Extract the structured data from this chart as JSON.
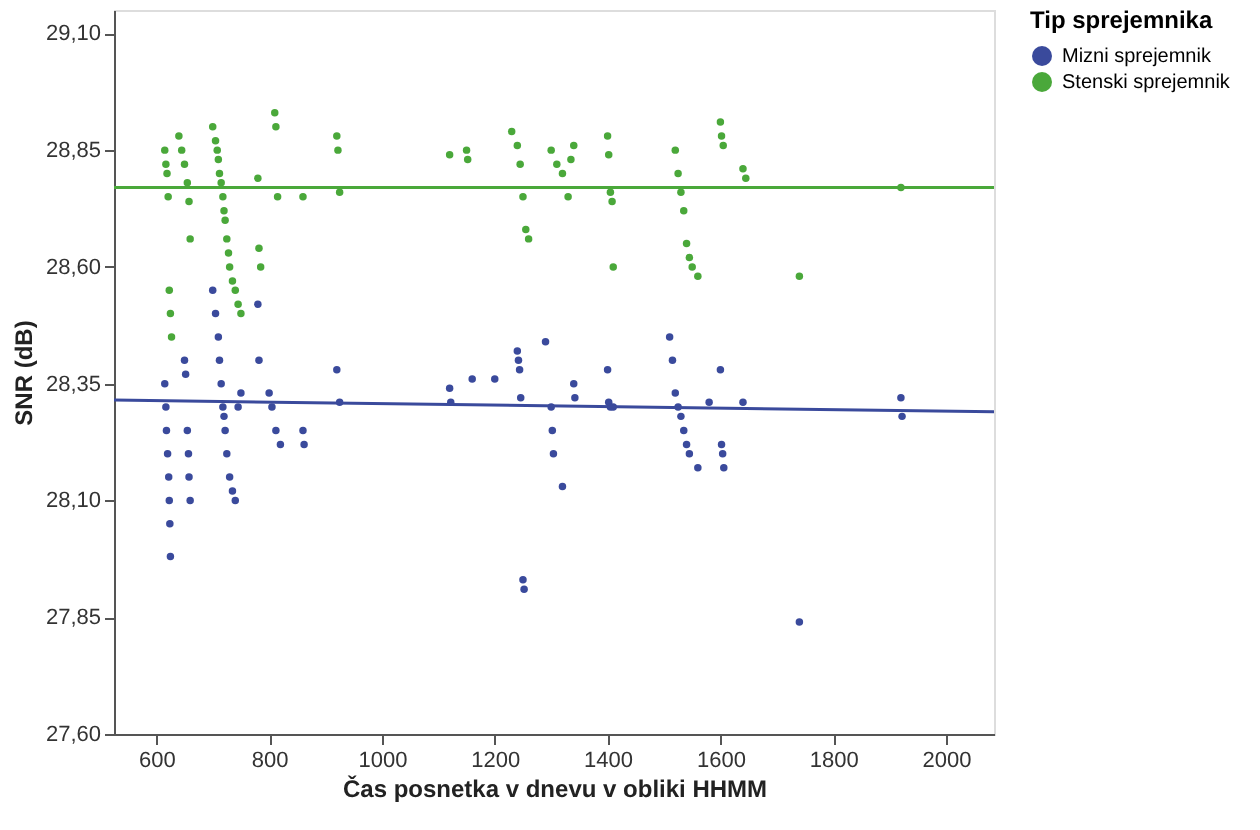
{
  "chart_data": {
    "type": "scatter",
    "xlabel": "Čas posnetka v dnevu v obliki HHMM",
    "ylabel": "SNR (dB)",
    "legend_title": "Tip sprejemnika",
    "legend": "right",
    "marker": "circle",
    "grid": false,
    "xlim": [
      525,
      2085
    ],
    "xticks": [
      600,
      800,
      1000,
      1200,
      1400,
      1600,
      1800,
      2000
    ],
    "ylim": [
      27.6,
      29.15
    ],
    "yticks": [
      {
        "value": 27.6,
        "label": "27,60"
      },
      {
        "value": 27.85,
        "label": "27,85"
      },
      {
        "value": 28.1,
        "label": "28,10"
      },
      {
        "value": 28.35,
        "label": "28,35"
      },
      {
        "value": 28.6,
        "label": "28,60"
      },
      {
        "value": 28.85,
        "label": "28,85"
      },
      {
        "value": 29.1,
        "label": "29,10"
      }
    ],
    "series": [
      {
        "name": "Mizni sprejemnik",
        "color": "#3a4a9c",
        "x": [
          615,
          617,
          618,
          620,
          622,
          623,
          624,
          625,
          650,
          652,
          655,
          657,
          658,
          660,
          700,
          705,
          710,
          712,
          715,
          718,
          720,
          722,
          725,
          730,
          735,
          740,
          745,
          750,
          780,
          782,
          800,
          805,
          812,
          820,
          860,
          862,
          920,
          925,
          1120,
          1122,
          1160,
          1200,
          1240,
          1242,
          1244,
          1246,
          1250,
          1252,
          1290,
          1300,
          1302,
          1304,
          1320,
          1340,
          1342,
          1400,
          1402,
          1405,
          1410,
          1510,
          1515,
          1520,
          1525,
          1530,
          1535,
          1540,
          1545,
          1560,
          1580,
          1600,
          1602,
          1604,
          1606,
          1640,
          1740,
          1920,
          1922
        ],
        "values": [
          28.35,
          28.3,
          28.25,
          28.2,
          28.15,
          28.1,
          28.05,
          27.98,
          28.4,
          28.37,
          28.25,
          28.2,
          28.15,
          28.1,
          28.55,
          28.5,
          28.45,
          28.4,
          28.35,
          28.3,
          28.28,
          28.25,
          28.2,
          28.15,
          28.12,
          28.1,
          28.3,
          28.33,
          28.52,
          28.4,
          28.33,
          28.3,
          28.25,
          28.22,
          28.25,
          28.22,
          28.38,
          28.31,
          28.34,
          28.31,
          28.36,
          28.36,
          28.42,
          28.4,
          28.38,
          28.32,
          27.93,
          27.91,
          28.44,
          28.3,
          28.25,
          28.2,
          28.13,
          28.35,
          28.32,
          28.38,
          28.31,
          28.3,
          28.3,
          28.45,
          28.4,
          28.33,
          28.3,
          28.28,
          28.25,
          28.22,
          28.2,
          28.17,
          28.31,
          28.38,
          28.22,
          28.2,
          28.17,
          28.31,
          27.84,
          28.32,
          28.28
        ]
      },
      {
        "name": "Stenski sprejemnik",
        "color": "#4aa83a",
        "x": [
          615,
          617,
          619,
          621,
          623,
          625,
          627,
          640,
          645,
          650,
          655,
          658,
          660,
          700,
          705,
          708,
          710,
          712,
          715,
          718,
          720,
          722,
          725,
          728,
          730,
          735,
          740,
          745,
          750,
          780,
          782,
          785,
          810,
          812,
          815,
          860,
          920,
          922,
          925,
          1120,
          1150,
          1152,
          1230,
          1240,
          1245,
          1250,
          1255,
          1260,
          1300,
          1310,
          1320,
          1330,
          1335,
          1340,
          1400,
          1402,
          1405,
          1408,
          1410,
          1520,
          1525,
          1530,
          1535,
          1540,
          1545,
          1550,
          1560,
          1600,
          1602,
          1605,
          1640,
          1645,
          1740,
          1920
        ],
        "values": [
          28.85,
          28.82,
          28.8,
          28.75,
          28.55,
          28.5,
          28.45,
          28.88,
          28.85,
          28.82,
          28.78,
          28.74,
          28.66,
          28.9,
          28.87,
          28.85,
          28.83,
          28.8,
          28.78,
          28.75,
          28.72,
          28.7,
          28.66,
          28.63,
          28.6,
          28.57,
          28.55,
          28.52,
          28.5,
          28.79,
          28.64,
          28.6,
          28.93,
          28.9,
          28.75,
          28.75,
          28.88,
          28.85,
          28.76,
          28.84,
          28.85,
          28.83,
          28.89,
          28.86,
          28.82,
          28.75,
          28.68,
          28.66,
          28.85,
          28.82,
          28.8,
          28.75,
          28.83,
          28.86,
          28.88,
          28.84,
          28.76,
          28.74,
          28.6,
          28.85,
          28.8,
          28.76,
          28.72,
          28.65,
          28.62,
          28.6,
          28.58,
          28.91,
          28.88,
          28.86,
          28.81,
          28.79,
          28.58,
          28.77
        ]
      },
      {
        "type": "line",
        "marker": "none",
        "color": "#3a4a9c",
        "x": [
          525,
          2085
        ],
        "values": [
          28.315,
          28.29
        ]
      },
      {
        "type": "line",
        "marker": "none",
        "color": "#4aa83a",
        "x": [
          525,
          2085
        ],
        "values": [
          28.77,
          28.77
        ]
      }
    ]
  }
}
